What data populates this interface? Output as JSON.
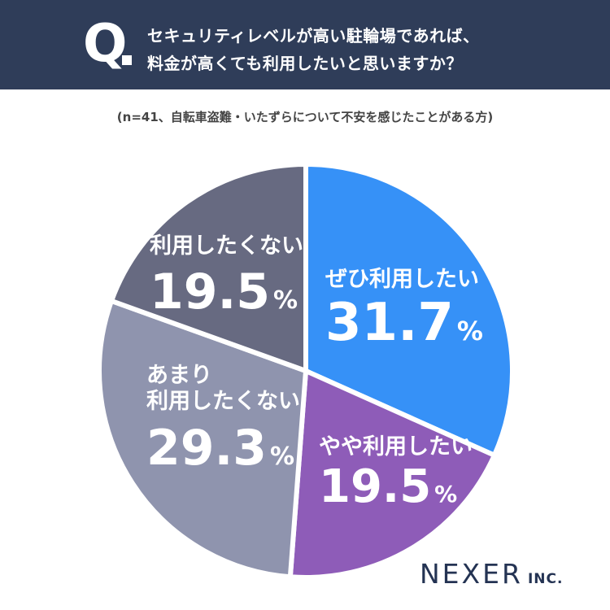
{
  "header": {
    "q_mark": "Q",
    "line1": "セキュリティレベルが高い駐輪場であれば、",
    "line2": "料金が高くても利用したいと思いますか？"
  },
  "note": "(n=41、自転車盗難・いたずらについて不安を感じたことがある方)",
  "colors": {
    "header_bg": "#2f3d59",
    "slice_1": "#3691f7",
    "slice_2": "#8e5cb8",
    "slice_3": "#8f94ae",
    "slice_4": "#676a81"
  },
  "chart_data": {
    "type": "pie",
    "start": "12 o'clock, clockwise",
    "slices": [
      {
        "label": "ぜひ利用したい",
        "value": 31.7,
        "display": "31.7",
        "unit": "%",
        "color": "#3691f7"
      },
      {
        "label": "やや利用したい",
        "value": 19.5,
        "display": "19.5",
        "unit": "%",
        "color": "#8e5cb8"
      },
      {
        "label": "あまり\n利用したくない",
        "value": 29.3,
        "display": "29.3",
        "unit": "%",
        "color": "#8f94ae"
      },
      {
        "label": "利用したくない",
        "value": 19.5,
        "display": "19.5",
        "unit": "%",
        "color": "#676a81"
      }
    ]
  },
  "logo": {
    "main": "NEXER",
    "suffix": "INC."
  }
}
